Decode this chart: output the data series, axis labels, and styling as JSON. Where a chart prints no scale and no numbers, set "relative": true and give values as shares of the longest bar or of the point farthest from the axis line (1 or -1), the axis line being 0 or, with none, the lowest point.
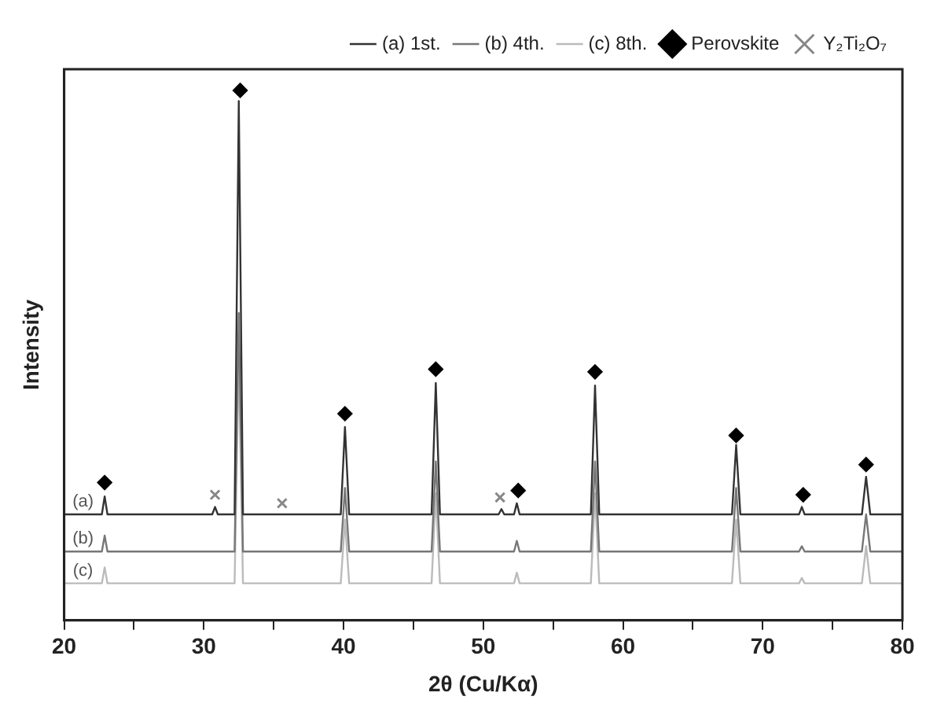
{
  "chart_data": {
    "type": "line",
    "relative": true,
    "xlabel": "2θ (Cu/Kα)",
    "ylabel": "Intensity",
    "xlim": [
      20,
      80
    ],
    "xticks": [
      20,
      {
        "value": 25,
        "label": null
      },
      30,
      {
        "value": 35,
        "label": null
      },
      40,
      {
        "value": 45,
        "label": null
      },
      50,
      {
        "value": 55,
        "label": null
      },
      60,
      {
        "value": 65,
        "label": null
      },
      70,
      {
        "value": 75,
        "label": null
      },
      80
    ],
    "legend": "top right",
    "grid": false,
    "line_style": "solid",
    "series": [
      {
        "name": "(a) 1st.",
        "color": "#333333",
        "marker": "none",
        "x": [
          20,
          22.7,
          22.9,
          23.1,
          30.6,
          30.8,
          31,
          32.2,
          32.5,
          32.8,
          39.8,
          40.1,
          40.4,
          46.3,
          46.6,
          46.9,
          51.1,
          51.3,
          51.5,
          52.2,
          52.4,
          52.6,
          57.7,
          58,
          58.3,
          67.8,
          68.1,
          68.4,
          72.6,
          72.8,
          73,
          77.1,
          77.4,
          77.7,
          80
        ],
        "values": [
          0.2,
          0.2,
          0.234,
          0.2,
          0.2,
          0.214,
          0.2,
          0.2,
          0.98,
          0.2,
          0.2,
          0.365,
          0.2,
          0.2,
          0.448,
          0.2,
          0.2,
          0.21,
          0.2,
          0.2,
          0.221,
          0.2,
          0.2,
          0.443,
          0.2,
          0.2,
          0.331,
          0.2,
          0.2,
          0.214,
          0.2,
          0.2,
          0.271,
          0.2,
          0.2
        ]
      },
      {
        "name": "(b) 4th.",
        "color": "#777777",
        "marker": "none",
        "x": [
          20,
          22.7,
          22.9,
          23.1,
          32.2,
          32.5,
          32.8,
          39.8,
          40.1,
          40.4,
          46.3,
          46.6,
          46.9,
          52.2,
          52.4,
          52.6,
          57.7,
          58,
          58.3,
          67.8,
          68.1,
          68.4,
          72.6,
          72.8,
          73,
          77.1,
          77.4,
          77.7,
          80
        ],
        "values": [
          0.13,
          0.13,
          0.16,
          0.13,
          0.13,
          0.58,
          0.13,
          0.13,
          0.25,
          0.13,
          0.13,
          0.3,
          0.13,
          0.13,
          0.15,
          0.13,
          0.13,
          0.3,
          0.13,
          0.13,
          0.25,
          0.13,
          0.13,
          0.14,
          0.13,
          0.13,
          0.2,
          0.13,
          0.13
        ]
      },
      {
        "name": "(c) 8th.",
        "color": "#bbbbbb",
        "marker": "none",
        "x": [
          20,
          22.7,
          22.9,
          23.1,
          32.2,
          32.5,
          32.8,
          39.8,
          40.1,
          40.4,
          46.3,
          46.6,
          46.9,
          52.2,
          52.4,
          52.6,
          57.7,
          58,
          58.3,
          67.8,
          68.1,
          68.4,
          72.6,
          72.8,
          73,
          77.1,
          77.4,
          77.7,
          80
        ],
        "values": [
          0.07,
          0.07,
          0.1,
          0.07,
          0.07,
          0.5,
          0.07,
          0.07,
          0.19,
          0.07,
          0.07,
          0.24,
          0.07,
          0.07,
          0.09,
          0.07,
          0.07,
          0.24,
          0.07,
          0.07,
          0.19,
          0.07,
          0.07,
          0.08,
          0.07,
          0.07,
          0.14,
          0.07,
          0.07
        ]
      },
      {
        "name": "Perovskite",
        "type": "scatter",
        "color": "#000000",
        "marker": "diamond",
        "x": [
          22.9,
          32.6,
          40.1,
          46.6,
          52.5,
          58,
          68.1,
          72.9,
          77.4
        ],
        "values": [
          0.26,
          1,
          0.39,
          0.474,
          0.245,
          0.469,
          0.349,
          0.237,
          0.294
        ]
      },
      {
        "name": "Y₂Ti₂O₇",
        "type": "scatter",
        "color": "#888888",
        "marker": "cross",
        "x": [
          30.8,
          35.6,
          51.2
        ],
        "values": [
          0.237,
          0.221,
          0.232
        ]
      }
    ],
    "annotations": [
      "(a)",
      "(b)",
      "(c)"
    ]
  }
}
